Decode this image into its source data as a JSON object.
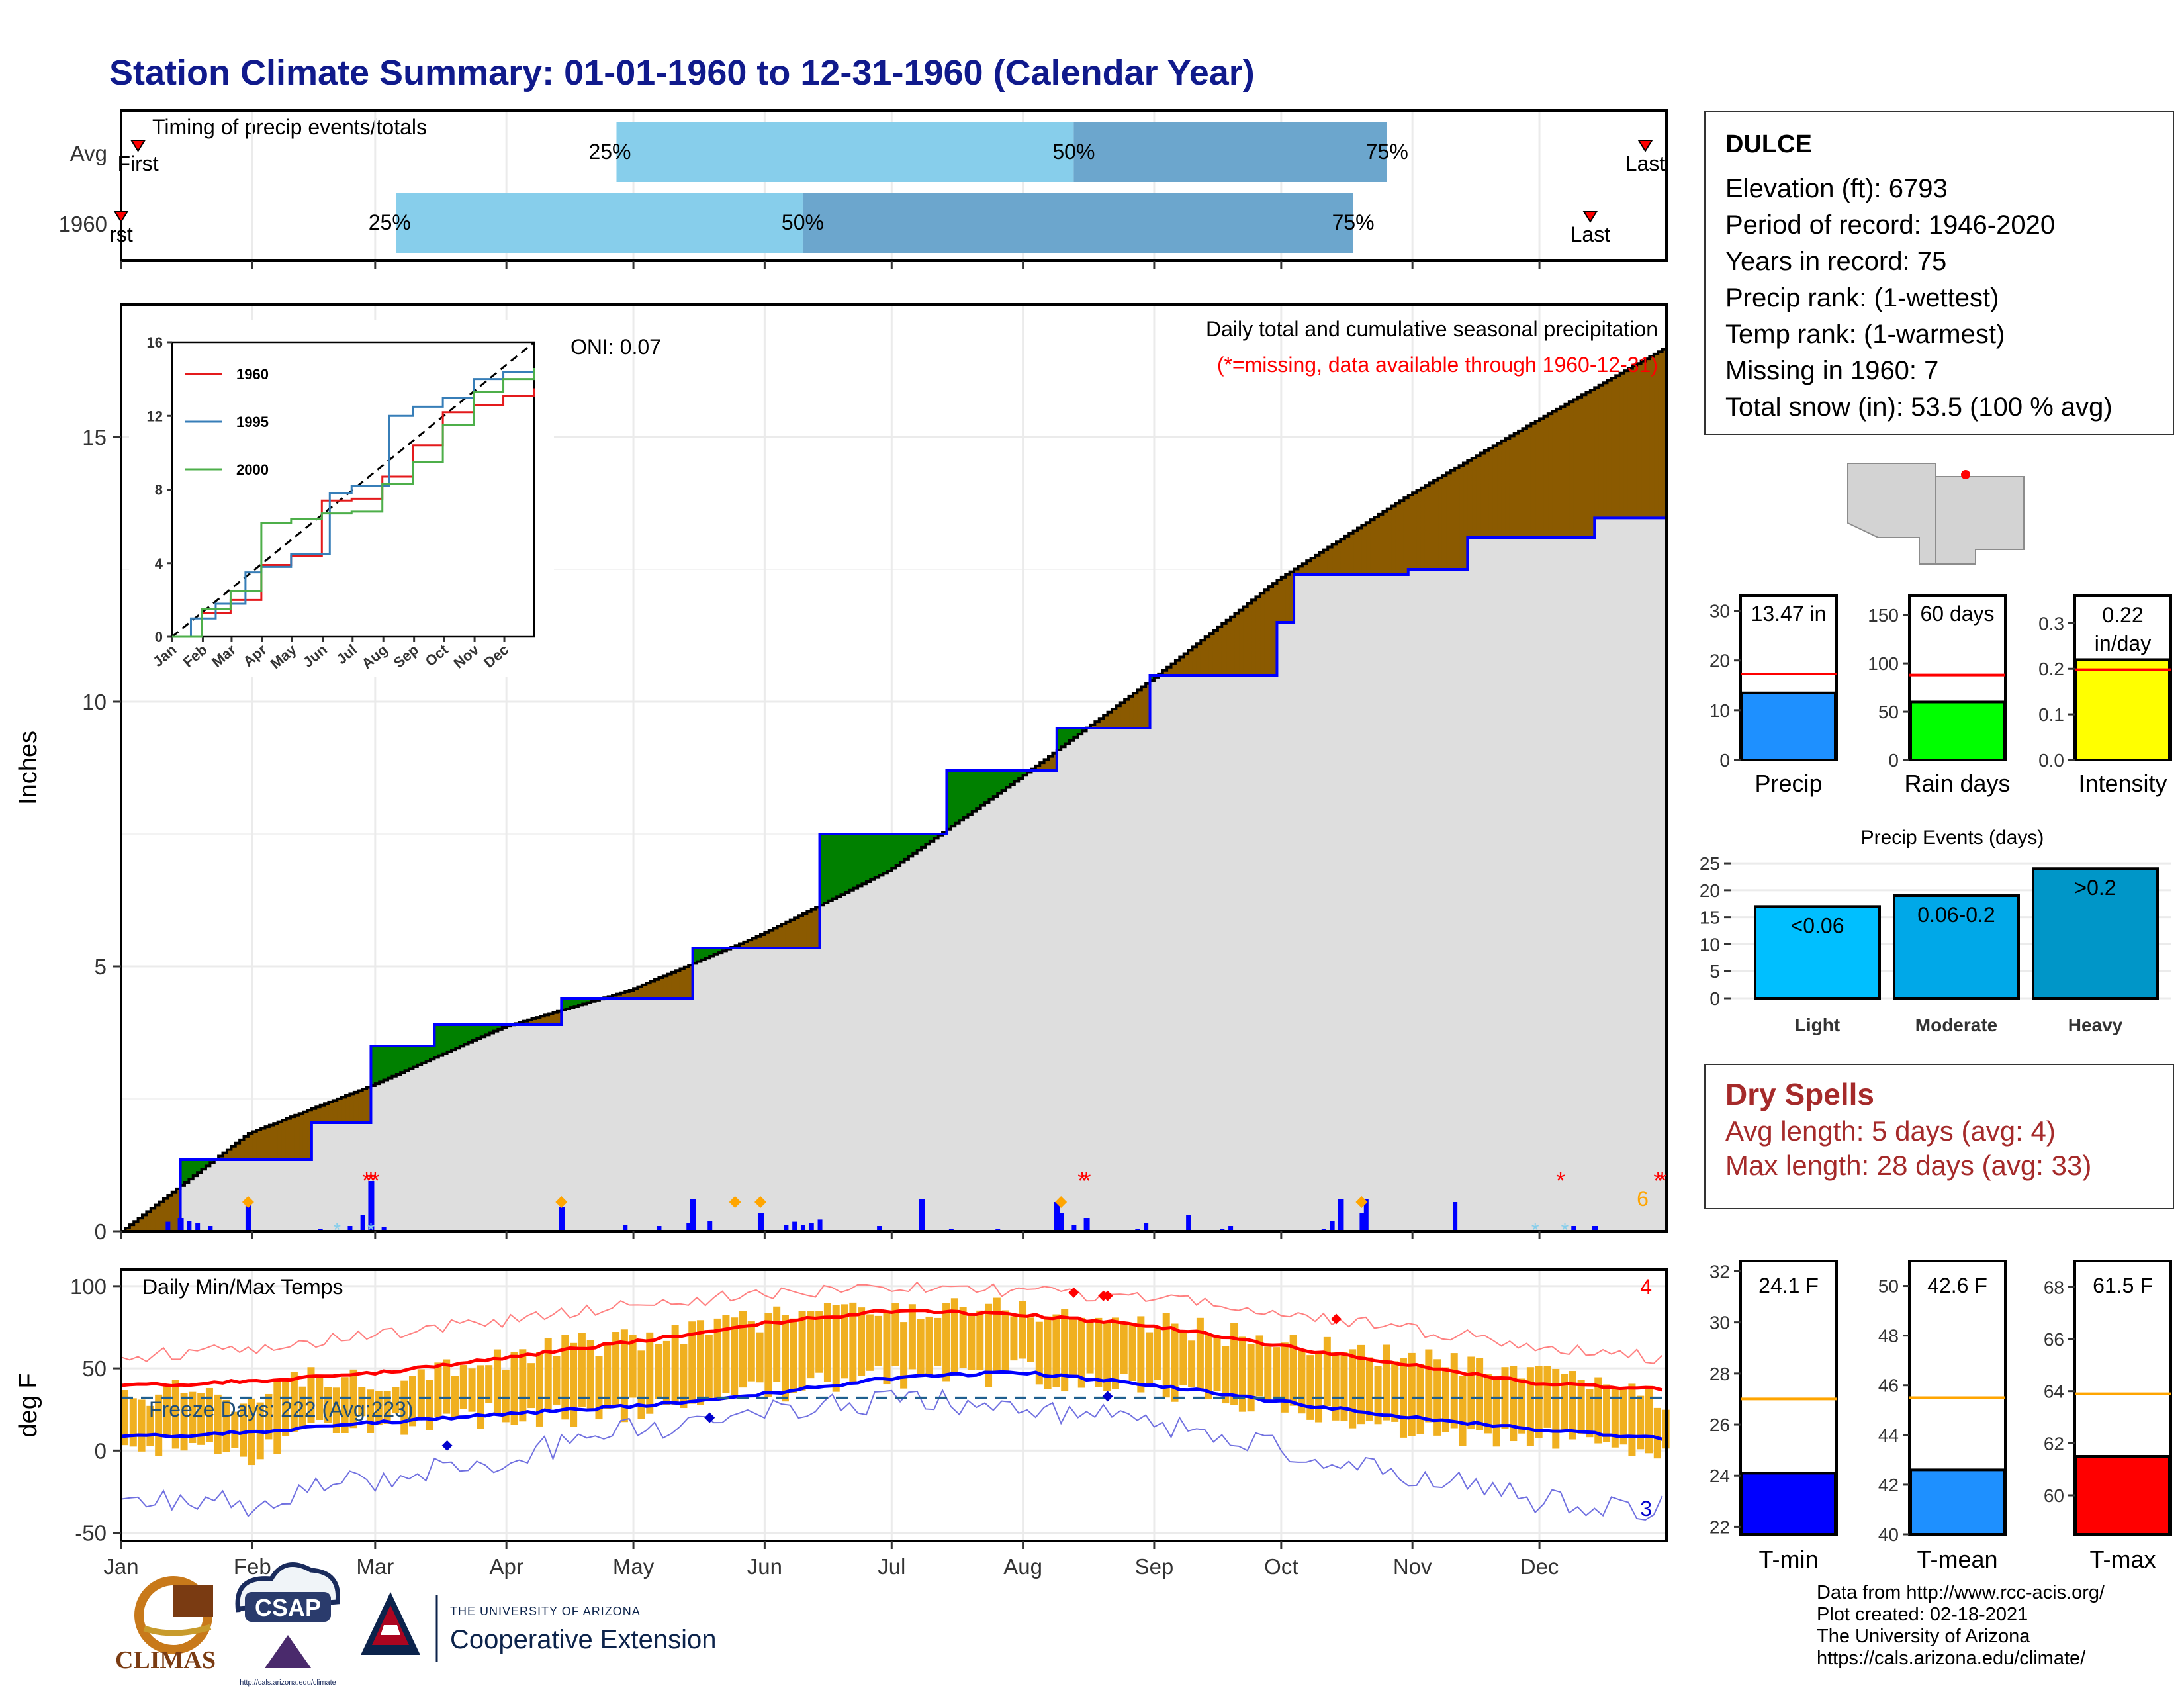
{
  "title": "Station Climate Summary: 01-01-1960 to 12-31-1960 (Calendar Year)",
  "months": [
    "Jan",
    "Feb",
    "Mar",
    "Apr",
    "May",
    "Jun",
    "Jul",
    "Aug",
    "Sep",
    "Oct",
    "Nov",
    "Dec"
  ],
  "timing": {
    "label": "Timing of precip events/totals",
    "row_labels": [
      "Avg",
      "1960"
    ],
    "avg": {
      "first_label": "First",
      "last_label": "Last",
      "p25": "25%",
      "p50": "50%",
      "p75": "75%"
    },
    "year": {
      "first_label": "rst",
      "last_label": "Last",
      "p25": "25%",
      "p50": "50%",
      "p75": "75%"
    }
  },
  "precip_panel": {
    "ylabel": "Inches",
    "oni": "ONI: 0.07",
    "subtitle": "Daily total and cumulative seasonal precipitation",
    "missing_note": "(*=missing, data available through 1960-12-31)",
    "missing_count": "6",
    "y_ticks": [
      "0",
      "5",
      "10",
      "15"
    ]
  },
  "inset": {
    "y_ticks": [
      "0",
      "4",
      "8",
      "12",
      "16"
    ],
    "x_ticks": [
      "Jan",
      "Feb",
      "Mar",
      "Apr",
      "May",
      "Jun",
      "Jul",
      "Aug",
      "Sep",
      "Oct",
      "Nov",
      "Dec"
    ],
    "legend": [
      {
        "name": "1960",
        "color": "#e41a1c"
      },
      {
        "name": "1995",
        "color": "#377eb8"
      },
      {
        "name": "2000",
        "color": "#4daf4a"
      }
    ]
  },
  "temp_panel": {
    "ylabel": "deg F",
    "title": "Daily Min/Max Temps",
    "freeze_days": "Freeze Days: 222 (Avg:223)",
    "max_records": "4",
    "min_records": "3",
    "y_ticks": [
      "-50",
      "0",
      "50",
      "100"
    ]
  },
  "station": {
    "name": "DULCE",
    "lines": [
      "Elevation (ft): 6793",
      "Period of record: 1946-2020",
      "Years in record: 75",
      "Precip rank:  (1-wettest)",
      "Temp rank:  (1-warmest)",
      "Missing in 1960: 7",
      "Total snow (in): 53.5 (100 % avg)"
    ]
  },
  "precip_summary": [
    {
      "label": "Precip",
      "value_text": "13.47 in",
      "value": 13.47,
      "avg": 17.3,
      "ymax": 33,
      "ticks": [
        "0",
        "10",
        "20",
        "30"
      ],
      "color": "#1e90ff"
    },
    {
      "label": "Rain days",
      "value_text": "60 days",
      "value": 60,
      "avg": 88,
      "ymax": 170,
      "ticks": [
        "0",
        "50",
        "100",
        "150"
      ],
      "color": "#00ff00"
    },
    {
      "label": "Intensity",
      "value_text": "0.22 in/day",
      "value_text_1": "0.22",
      "value_text_2": "in/day",
      "value": 0.22,
      "avg": 0.198,
      "ymax": 0.36,
      "ticks": [
        "0.0",
        "0.1",
        "0.2",
        "0.3"
      ],
      "color": "#ffff00"
    }
  ],
  "precip_events": {
    "title": "Precip Events (days)",
    "y_ticks": [
      "0",
      "5",
      "10",
      "15",
      "20",
      "25"
    ],
    "bars": [
      {
        "category": "Light",
        "label": "<0.06",
        "value": 17,
        "color": "#00bfff"
      },
      {
        "category": "Moderate",
        "label": "0.06-0.2",
        "value": 19,
        "color": "#00a8e8"
      },
      {
        "category": "Heavy",
        "label": ">0.2",
        "value": 24,
        "color": "#0096c8"
      }
    ]
  },
  "dry_spells": {
    "title": "Dry Spells",
    "avg_length": "Avg length: 5 days (avg: 4)",
    "max_length": "Max length: 28 days (avg: 33)"
  },
  "temp_summary": [
    {
      "label": "T-min",
      "value_text": "24.1 F",
      "value": 24.1,
      "avg": 27.0,
      "ymin": 21.7,
      "ymax": 32.4,
      "ticks": [
        22,
        24,
        26,
        28,
        30,
        32
      ],
      "color": "#0000ff"
    },
    {
      "label": "T-mean",
      "value_text": "42.6 F",
      "value": 42.6,
      "avg": 45.5,
      "ymin": 40,
      "ymax": 51,
      "ticks": [
        40,
        42,
        44,
        46,
        48,
        50
      ],
      "color": "#1e90ff"
    },
    {
      "label": "T-max",
      "value_text": "61.5 F",
      "value": 61.5,
      "avg": 63.9,
      "ymin": 58.5,
      "ymax": 69,
      "ticks": [
        60,
        62,
        64,
        66,
        68
      ],
      "color": "#ff0000"
    }
  ],
  "credits": [
    "Data from http://www.rcc-acis.org/",
    "Plot created: 02-18-2021",
    "The University of Arizona",
    "https://cals.arizona.edu/climate/"
  ],
  "logos": {
    "climas": "CLIMAS",
    "csap": "CSAP",
    "csap_url": "http://cals.arizona.edu/climate",
    "ua_line1": "THE UNIVERSITY OF ARIZONA",
    "ua_line2": "Cooperative Extension"
  },
  "chart_data": [
    {
      "type": "area",
      "name": "cumulative precipitation",
      "ylabel": "Inches",
      "ylim": [
        0,
        17.5
      ],
      "x_unit": "day of year",
      "xlim": [
        1,
        366
      ],
      "observed_cumulative": {
        "x": [
          1,
          15,
          31,
          46,
          60,
          75,
          91,
          105,
          121,
          136,
          152,
          166,
          182,
          196,
          213,
          222,
          229,
          244,
          258,
          274,
          278,
          289,
          305,
          319,
          335,
          349,
          366
        ],
        "y": [
          0.0,
          1.35,
          1.35,
          2.05,
          3.5,
          3.9,
          3.9,
          4.4,
          4.4,
          5.35,
          5.35,
          7.5,
          7.5,
          8.7,
          8.7,
          9.5,
          9.5,
          10.5,
          10.5,
          11.5,
          12.4,
          12.4,
          12.5,
          13.1,
          13.1,
          13.47,
          13.47
        ]
      },
      "average_cumulative": {
        "x": [
          1,
          31,
          60,
          91,
          121,
          152,
          182,
          213,
          244,
          274,
          305,
          335,
          366
        ],
        "y": [
          0.0,
          1.85,
          2.75,
          3.85,
          4.55,
          5.6,
          6.8,
          8.55,
          10.4,
          12.3,
          13.9,
          15.3,
          16.7
        ]
      },
      "daily_precip_peaks": {
        "x": [
          15,
          31,
          60,
          105,
          136,
          152,
          190,
          222,
          229,
          289,
          349
        ],
        "y": [
          0.25,
          0.6,
          0.95,
          0.45,
          0.6,
          0.35,
          0.6,
          0.55,
          0.25,
          0.6,
          0.1
        ]
      }
    },
    {
      "type": "line",
      "name": "daily temperatures",
      "ylabel": "deg F",
      "ylim": [
        -55,
        110
      ],
      "x_unit": "day of year",
      "series": [
        {
          "name": "Avg max",
          "x": [
            1,
            31,
            60,
            91,
            121,
            152,
            182,
            213,
            244,
            274,
            305,
            335,
            366
          ],
          "y": [
            39,
            42,
            47,
            56,
            66,
            77,
            85,
            83,
            76,
            64,
            52,
            41,
            37
          ]
        },
        {
          "name": "Avg min",
          "x": [
            1,
            31,
            60,
            91,
            121,
            152,
            182,
            213,
            244,
            274,
            305,
            335,
            366
          ],
          "y": [
            8,
            11,
            17,
            22,
            27,
            34,
            44,
            48,
            40,
            30,
            20,
            13,
            7
          ]
        },
        {
          "name": "Record high",
          "x": [
            1,
            31,
            60,
            91,
            121,
            152,
            182,
            213,
            244,
            274,
            305,
            335,
            366
          ],
          "y": [
            57,
            62,
            70,
            79,
            88,
            95,
            100,
            97,
            93,
            85,
            74,
            64,
            56
          ]
        },
        {
          "name": "Record low",
          "x": [
            1,
            31,
            60,
            91,
            121,
            152,
            182,
            213,
            244,
            274,
            305,
            335,
            366
          ],
          "y": [
            -28,
            -32,
            -18,
            -5,
            12,
            22,
            30,
            28,
            17,
            3,
            -15,
            -30,
            -35
          ]
        },
        {
          "name": "1960 max",
          "x": [
            1,
            20,
            31,
            45,
            60,
            75,
            91,
            105,
            121,
            136,
            152,
            166,
            182,
            196,
            213,
            229,
            244,
            258,
            274,
            289,
            305,
            320,
            335,
            350,
            366
          ],
          "y": [
            30,
            38,
            28,
            46,
            42,
            52,
            55,
            64,
            66,
            74,
            80,
            86,
            84,
            88,
            86,
            80,
            78,
            72,
            66,
            62,
            56,
            50,
            44,
            42,
            30
          ]
        },
        {
          "name": "1960 min",
          "x": [
            1,
            20,
            31,
            45,
            60,
            75,
            91,
            105,
            121,
            136,
            152,
            166,
            182,
            196,
            213,
            229,
            244,
            258,
            274,
            289,
            305,
            320,
            335,
            350,
            366
          ],
          "y": [
            0,
            8,
            -2,
            12,
            14,
            18,
            22,
            20,
            26,
            30,
            36,
            40,
            46,
            44,
            48,
            40,
            38,
            30,
            26,
            18,
            14,
            6,
            10,
            4,
            2
          ]
        }
      ],
      "freeze_threshold": 32
    }
  ]
}
